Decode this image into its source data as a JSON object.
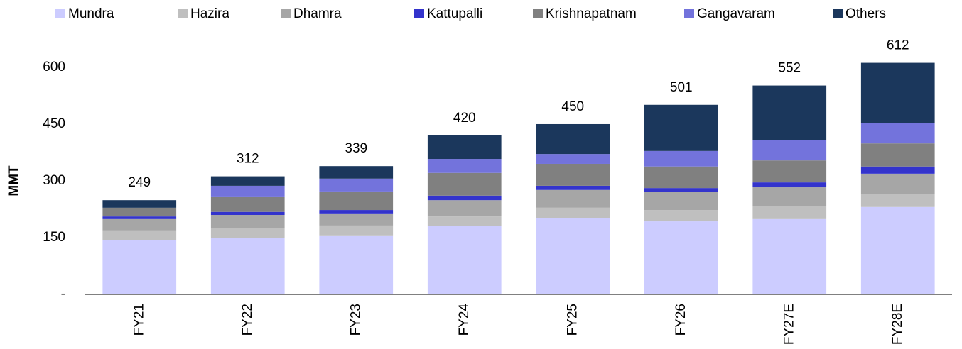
{
  "chart_data": {
    "type": "stacked_bar",
    "y_label": "MMT",
    "categories": [
      "FY21",
      "FY22",
      "FY23",
      "FY24",
      "FY25",
      "FY26",
      "FY27E",
      "FY28E"
    ],
    "series": [
      {
        "name": "Mundra",
        "color": "#ccccff",
        "values": [
          144,
          150,
          156,
          180,
          202,
          193,
          199,
          231
        ]
      },
      {
        "name": "Hazira",
        "color": "#bfbfbf",
        "values": [
          25,
          26,
          26,
          26,
          27,
          30,
          34,
          35
        ]
      },
      {
        "name": "Dhamra",
        "color": "#a6a6a6",
        "values": [
          30,
          34,
          32,
          43,
          47,
          47,
          50,
          53
        ]
      },
      {
        "name": "Kattupalli",
        "color": "#3333cc",
        "values": [
          7,
          8,
          9,
          12,
          11,
          11,
          13,
          19
        ]
      },
      {
        "name": "Krishnapatnam",
        "color": "#808080",
        "values": [
          23,
          39,
          49,
          60,
          58,
          57,
          58,
          61
        ]
      },
      {
        "name": "Gangavaram",
        "color": "#7373dc",
        "values": [
          0,
          30,
          34,
          37,
          26,
          41,
          53,
          53
        ]
      },
      {
        "name": "Others",
        "color": "#1b375c",
        "values": [
          20,
          25,
          33,
          62,
          79,
          122,
          145,
          160
        ]
      }
    ],
    "totals": [
      249,
      312,
      339,
      420,
      450,
      501,
      552,
      612
    ],
    "ylim": [
      0,
      650
    ],
    "yticks": [
      {
        "value": 0,
        "label": "-"
      },
      150,
      300,
      450,
      600
    ]
  }
}
